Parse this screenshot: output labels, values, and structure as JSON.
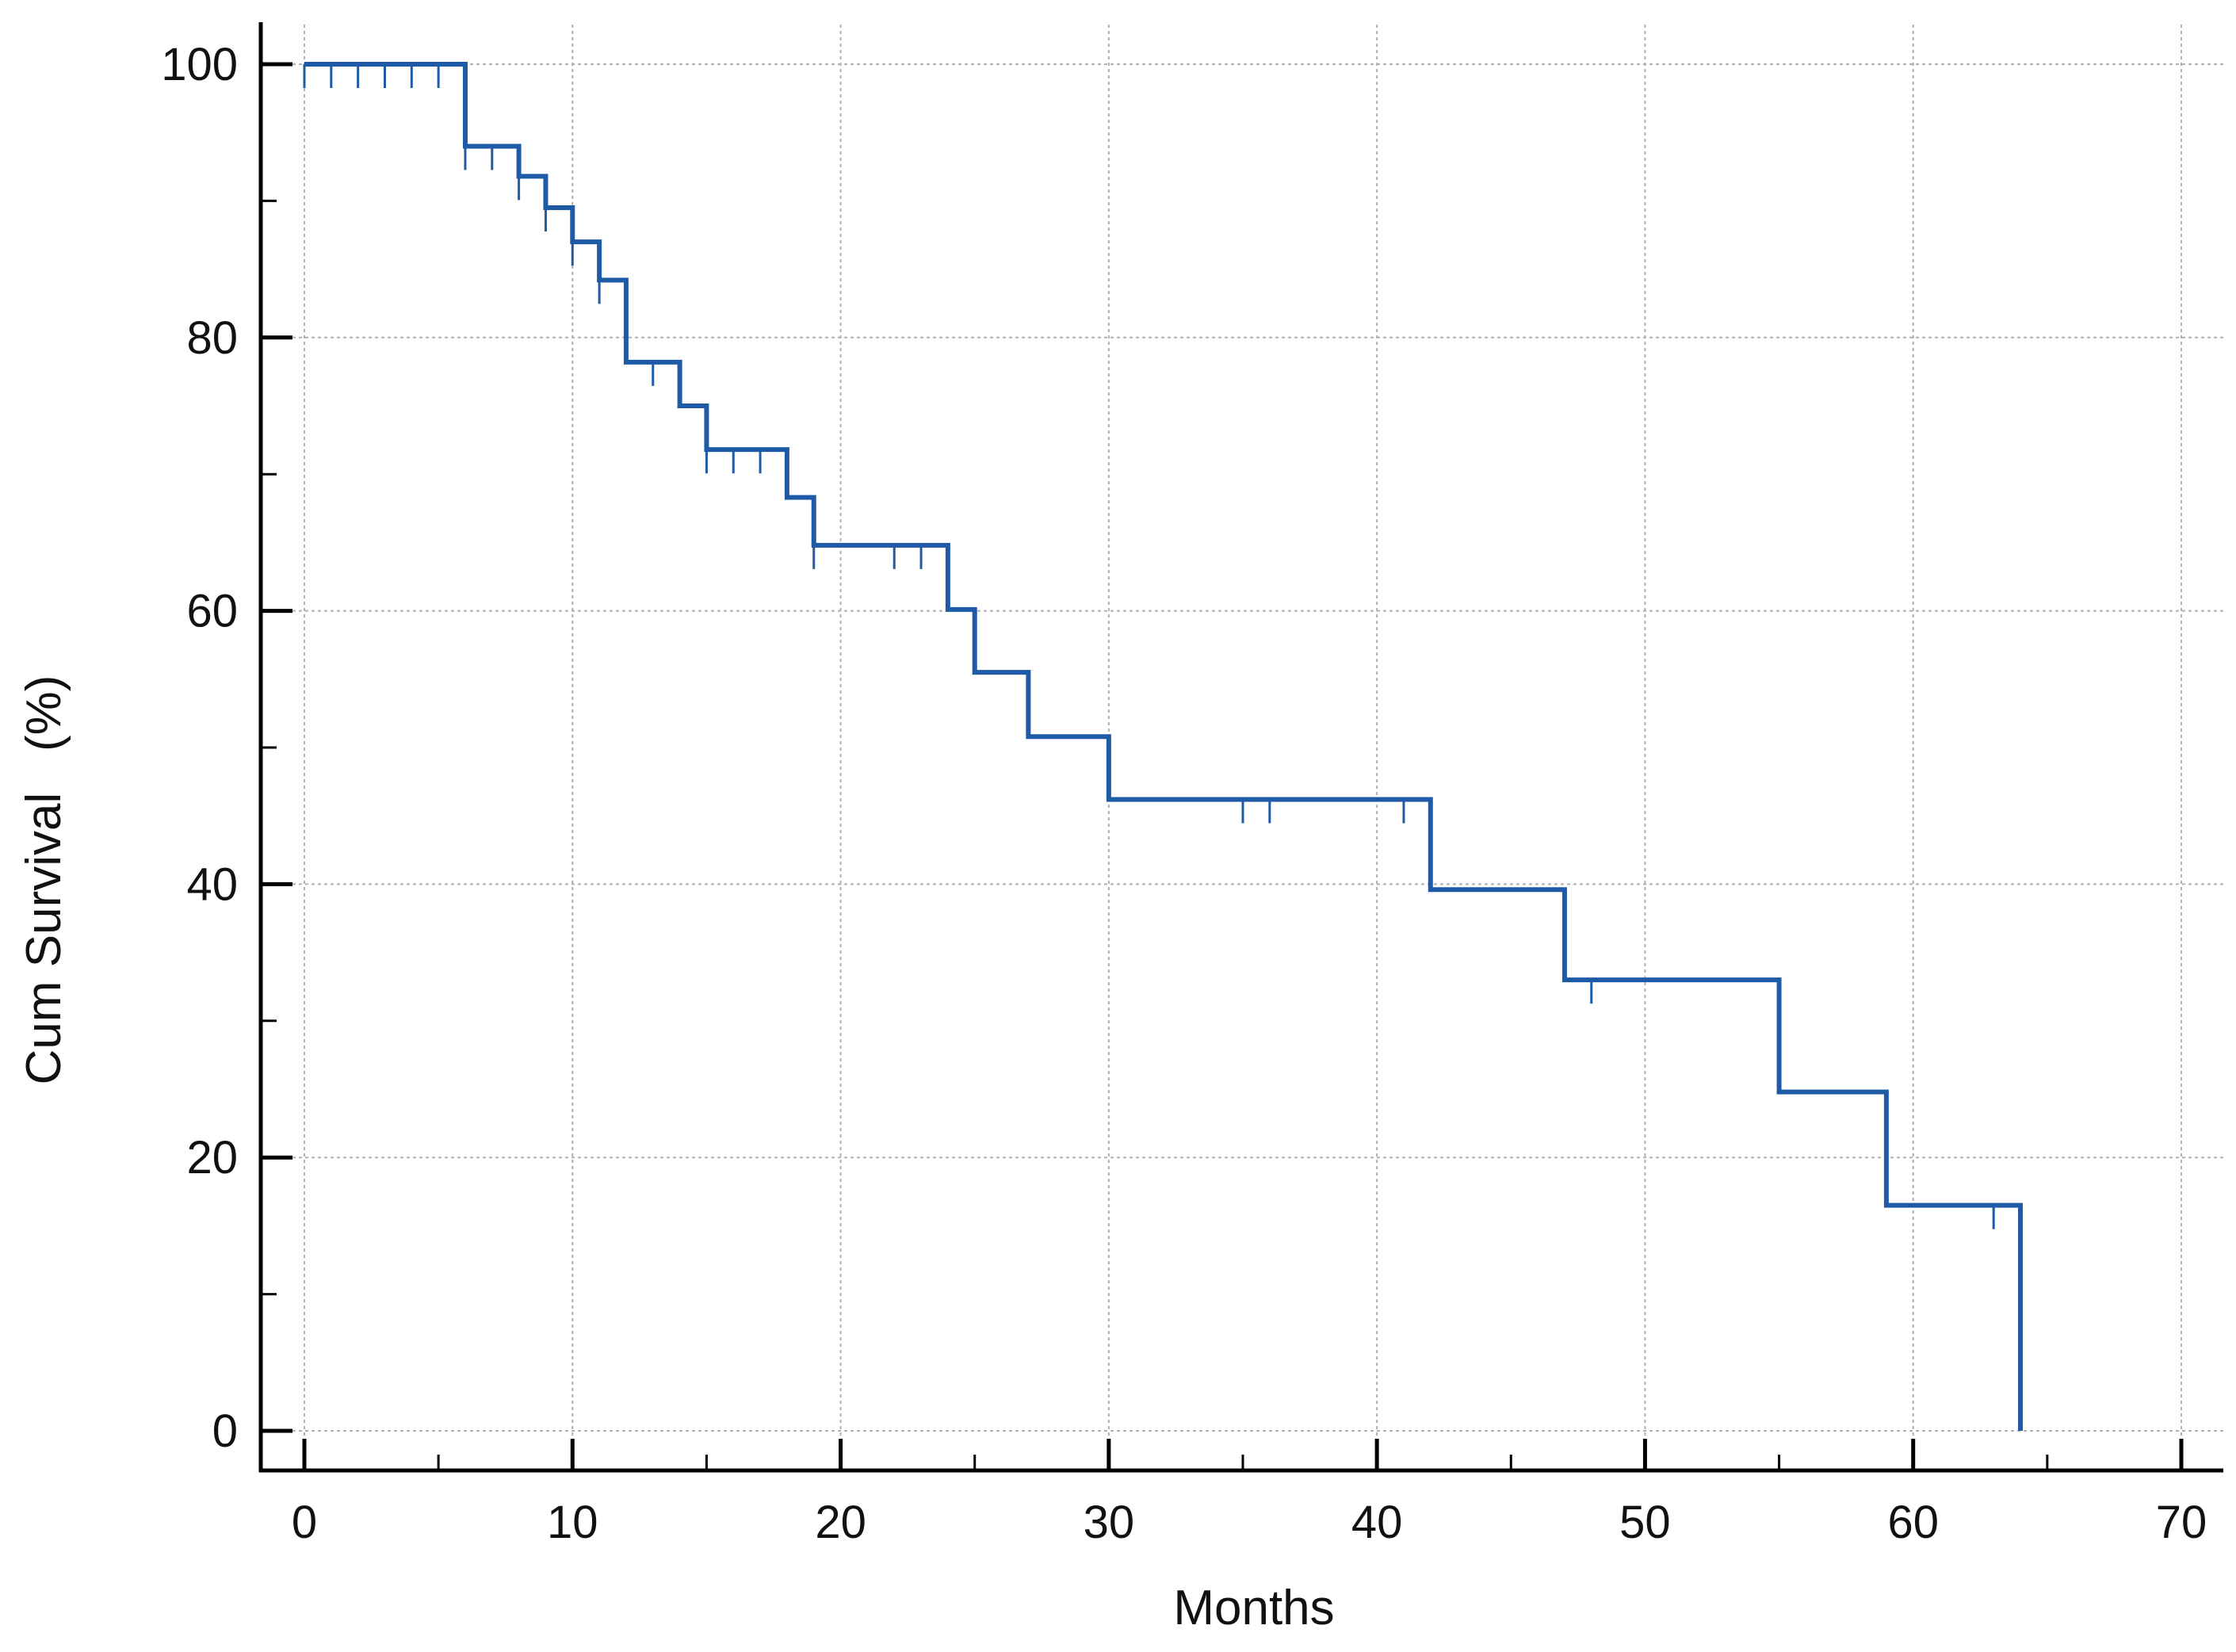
{
  "chart_data": {
    "type": "line",
    "subtype": "kaplan-meier-step",
    "title": "",
    "xlabel": "Months",
    "ylabel": "Cum Survival   (%)",
    "xlim": [
      0,
      70
    ],
    "ylim": [
      0,
      100
    ],
    "x_ticks": [
      0,
      10,
      20,
      30,
      40,
      50,
      60,
      70
    ],
    "x_tick_labels": [
      "0",
      "10",
      "20",
      "30",
      "40",
      "50",
      "60",
      "70"
    ],
    "x_minor_ticks": [
      5,
      15,
      25,
      35,
      45,
      55,
      65
    ],
    "y_ticks": [
      0,
      20,
      40,
      60,
      80,
      100
    ],
    "y_tick_labels": [
      "0",
      "20",
      "40",
      "60",
      "80",
      "100"
    ],
    "y_minor_ticks": [
      10,
      30,
      50,
      70,
      90
    ],
    "grid": true,
    "legend": "none",
    "colors": {
      "curve": "#1f5aa6",
      "grid": "#b0b0b0",
      "axis": "#000000"
    },
    "series": [
      {
        "steps": [
          [
            0,
            100
          ],
          [
            6,
            94
          ],
          [
            8,
            91.8
          ],
          [
            9,
            89.5
          ],
          [
            10,
            87
          ],
          [
            11,
            84.2
          ],
          [
            12,
            78.2
          ],
          [
            14,
            75
          ],
          [
            15,
            71.8
          ],
          [
            18,
            68.3
          ],
          [
            19,
            64.8
          ],
          [
            24,
            60.1
          ],
          [
            25,
            55.5
          ],
          [
            27,
            50.8
          ],
          [
            30,
            46.2
          ],
          [
            42,
            39.6
          ],
          [
            47,
            33
          ],
          [
            55,
            24.8
          ],
          [
            59,
            16.5
          ],
          [
            64,
            0
          ]
        ],
        "censored": [
          [
            0,
            100
          ],
          [
            1,
            100
          ],
          [
            2,
            100
          ],
          [
            3,
            100
          ],
          [
            4,
            100
          ],
          [
            5,
            100
          ],
          [
            6,
            94
          ],
          [
            7,
            94
          ],
          [
            8,
            91.8
          ],
          [
            9,
            89.5
          ],
          [
            10,
            87
          ],
          [
            11,
            84.2
          ],
          [
            13,
            78.2
          ],
          [
            15,
            71.8
          ],
          [
            16,
            71.8
          ],
          [
            17,
            71.8
          ],
          [
            19,
            64.8
          ],
          [
            22,
            64.8
          ],
          [
            23,
            64.8
          ],
          [
            35,
            46.2
          ],
          [
            36,
            46.2
          ],
          [
            41,
            46.2
          ],
          [
            48,
            33
          ],
          [
            63,
            16.5
          ]
        ]
      }
    ]
  }
}
